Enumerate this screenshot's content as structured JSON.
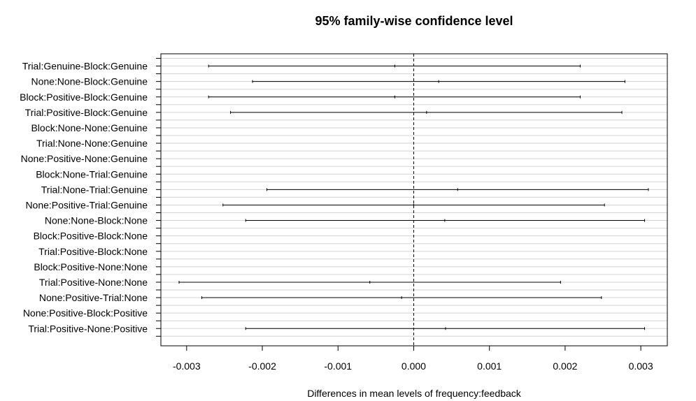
{
  "chart_data": {
    "type": "scatter",
    "title": "95% family-wise confidence level",
    "xlabel": "Differences in mean levels of frequency:feedback",
    "ylabel": "",
    "xlim": [
      -0.00334,
      0.00335
    ],
    "x_ticks": [
      -0.003,
      -0.002,
      -0.001,
      0.0,
      0.001,
      0.002,
      0.003
    ],
    "x_tick_labels": [
      "-0.003",
      "-0.002",
      "-0.001",
      "0.000",
      "0.001",
      "0.002",
      "0.003"
    ],
    "reference_line": 0.0,
    "grid": true,
    "total_rows": 36,
    "labeled_rows": [
      {
        "label": "Trial:Genuine-Block:Genuine",
        "row": 1,
        "lwr": -0.00271,
        "diff": -0.00025,
        "upr": 0.0022
      },
      {
        "label": "None:None-Block:Genuine",
        "row": 3,
        "lwr": -0.00213,
        "diff": 0.00033,
        "upr": 0.00279
      },
      {
        "label": "Block:Positive-Block:Genuine",
        "row": 5,
        "lwr": -0.00271,
        "diff": -0.00025,
        "upr": 0.0022
      },
      {
        "label": "Trial:Positive-Block:Genuine",
        "row": 7,
        "lwr": -0.00242,
        "diff": 0.00017,
        "upr": 0.00275
      },
      {
        "label": "Block:None-None:Genuine",
        "row": 9
      },
      {
        "label": "Trial:None-None:Genuine",
        "row": 11
      },
      {
        "label": "None:Positive-None:Genuine",
        "row": 13
      },
      {
        "label": "Block:None-Trial:Genuine",
        "row": 15
      },
      {
        "label": "Trial:None-Trial:Genuine",
        "row": 17,
        "lwr": -0.00194,
        "diff": 0.00058,
        "upr": 0.0031
      },
      {
        "label": "None:Positive-Trial:Genuine",
        "row": 19,
        "lwr": -0.00252,
        "diff": 0.0,
        "upr": 0.00252
      },
      {
        "label": "None:None-Block:None",
        "row": 21,
        "lwr": -0.00222,
        "diff": 0.00041,
        "upr": 0.00305
      },
      {
        "label": "Block:Positive-Block:None",
        "row": 23
      },
      {
        "label": "Trial:Positive-Block:None",
        "row": 25
      },
      {
        "label": "Block:Positive-None:None",
        "row": 27
      },
      {
        "label": "Trial:Positive-None:None",
        "row": 29,
        "lwr": -0.0031,
        "diff": -0.00058,
        "upr": 0.00194
      },
      {
        "label": "None:Positive-Trial:None",
        "row": 31,
        "lwr": -0.0028,
        "diff": -0.00016,
        "upr": 0.00248
      },
      {
        "label": "None:Positive-Block:Positive",
        "row": 33
      },
      {
        "label": "Trial:Positive-None:Positive",
        "row": 35,
        "lwr": -0.00222,
        "diff": 0.00042,
        "upr": 0.00305
      }
    ]
  }
}
